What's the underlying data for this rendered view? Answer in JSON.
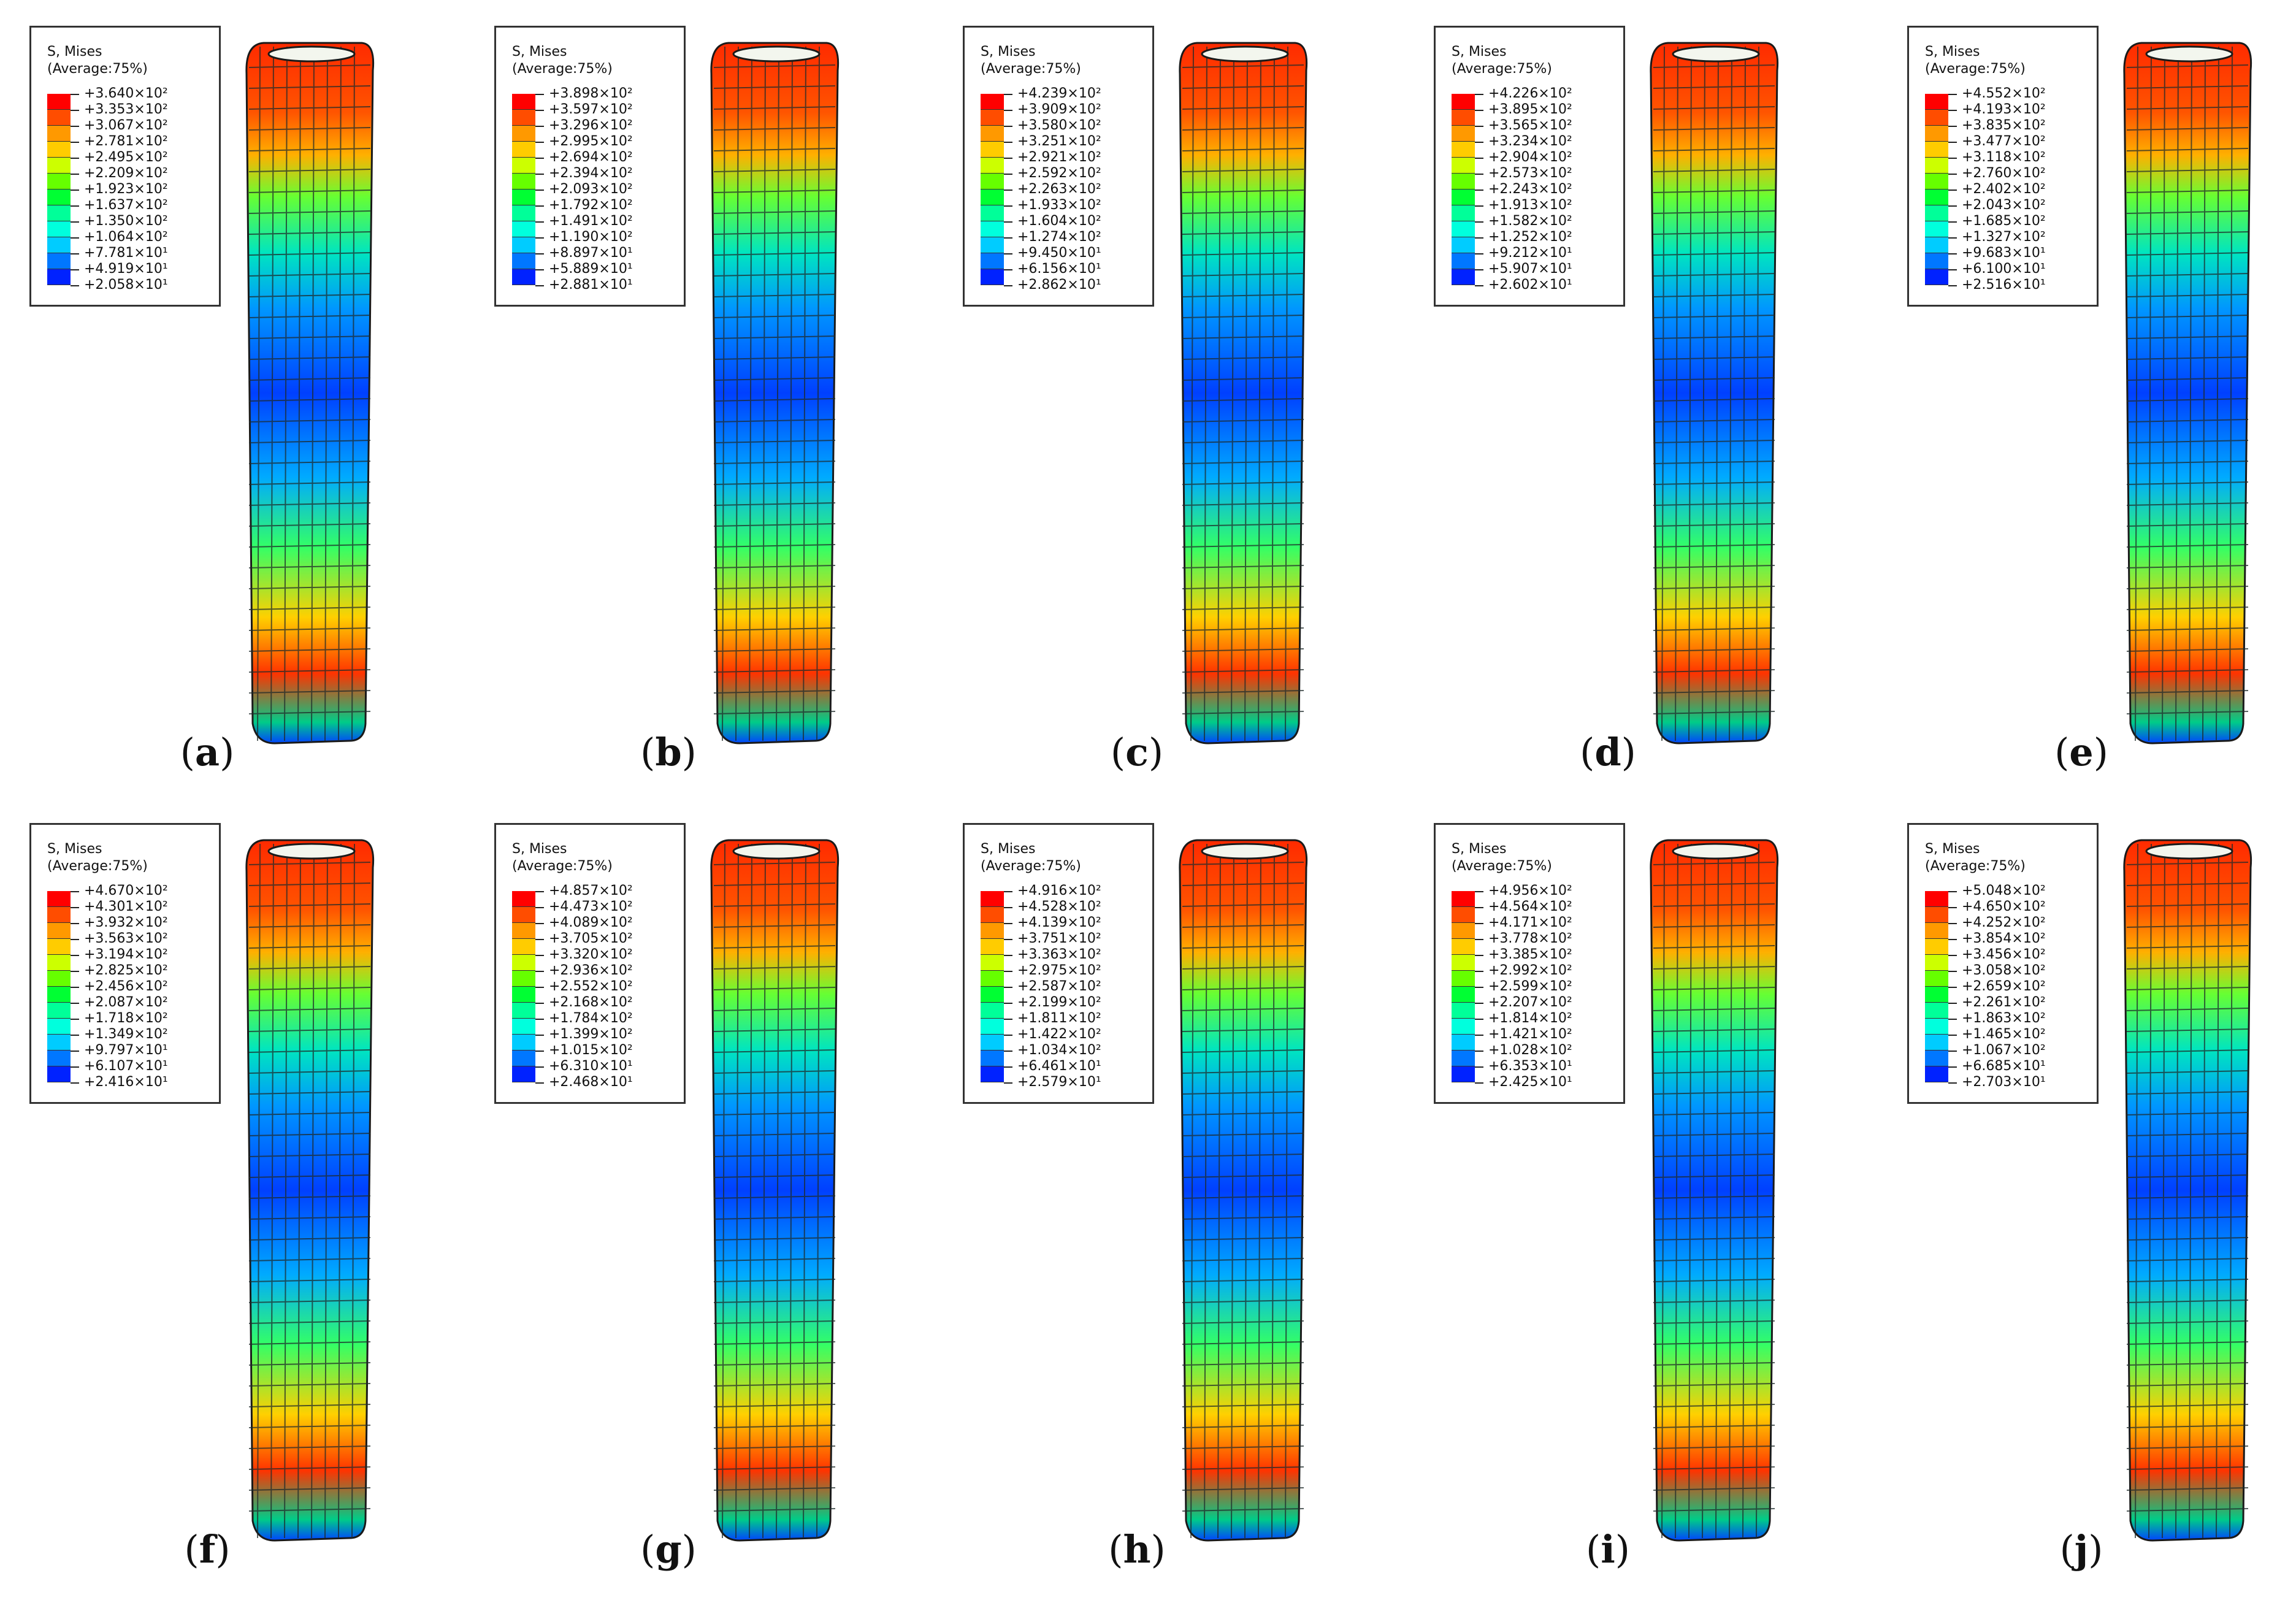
{
  "legend_title": "S, Mises",
  "legend_subtitle": "(Average:75%)",
  "legend_colors": [
    "#ff0000",
    "#ff4d00",
    "#ff9900",
    "#ffcc00",
    "#ccff00",
    "#66ff00",
    "#00ff33",
    "#00ff99",
    "#00ffdd",
    "#00ccff",
    "#0077ff",
    "#0022ff"
  ],
  "panels": [
    {
      "label": "a",
      "open": "(",
      "close": ")",
      "values": [
        "+3.640×10²",
        "+3.353×10²",
        "+3.067×10²",
        "+2.781×10²",
        "+2.495×10²",
        "+2.209×10²",
        "+1.923×10²",
        "+1.637×10²",
        "+1.350×10²",
        "+1.064×10²",
        "+7.781×10¹",
        "+4.919×10¹",
        "+2.058×10¹"
      ]
    },
    {
      "label": "b",
      "open": "(",
      "close": ")",
      "values": [
        "+3.898×10²",
        "+3.597×10²",
        "+3.296×10²",
        "+2.995×10²",
        "+2.694×10²",
        "+2.394×10²",
        "+2.093×10²",
        "+1.792×10²",
        "+1.491×10²",
        "+1.190×10²",
        "+8.897×10¹",
        "+5.889×10¹",
        "+2.881×10¹"
      ]
    },
    {
      "label": "c",
      "open": "(",
      "close": ")",
      "values": [
        "+4.239×10²",
        "+3.909×10²",
        "+3.580×10²",
        "+3.251×10²",
        "+2.921×10²",
        "+2.592×10²",
        "+2.263×10²",
        "+1.933×10²",
        "+1.604×10²",
        "+1.274×10²",
        "+9.450×10¹",
        "+6.156×10¹",
        "+2.862×10¹"
      ]
    },
    {
      "label": "d",
      "open": "(",
      "close": ")",
      "values": [
        "+4.226×10²",
        "+3.895×10²",
        "+3.565×10²",
        "+3.234×10²",
        "+2.904×10²",
        "+2.573×10²",
        "+2.243×10²",
        "+1.913×10²",
        "+1.582×10²",
        "+1.252×10²",
        "+9.212×10¹",
        "+5.907×10¹",
        "+2.602×10¹"
      ]
    },
    {
      "label": "e",
      "open": "(",
      "close": ")",
      "values": [
        "+4.552×10²",
        "+4.193×10²",
        "+3.835×10²",
        "+3.477×10²",
        "+3.118×10²",
        "+2.760×10²",
        "+2.402×10²",
        "+2.043×10²",
        "+1.685×10²",
        "+1.327×10²",
        "+9.683×10¹",
        "+6.100×10¹",
        "+2.516×10¹"
      ]
    },
    {
      "label": "f",
      "open": "(",
      "close": ")",
      "values": [
        "+4.670×10²",
        "+4.301×10²",
        "+3.932×10²",
        "+3.563×10²",
        "+3.194×10²",
        "+2.825×10²",
        "+2.456×10²",
        "+2.087×10²",
        "+1.718×10²",
        "+1.349×10²",
        "+9.797×10¹",
        "+6.107×10¹",
        "+2.416×10¹"
      ]
    },
    {
      "label": "g",
      "open": "(",
      "close": ")",
      "values": [
        "+4.857×10²",
        "+4.473×10²",
        "+4.089×10²",
        "+3.705×10²",
        "+3.320×10²",
        "+2.936×10²",
        "+2.552×10²",
        "+2.168×10²",
        "+1.784×10²",
        "+1.399×10²",
        "+1.015×10²",
        "+6.310×10¹",
        "+2.468×10¹"
      ]
    },
    {
      "label": "h",
      "open": "(",
      "close": ")",
      "values": [
        "+4.916×10²",
        "+4.528×10²",
        "+4.139×10²",
        "+3.751×10²",
        "+3.363×10²",
        "+2.975×10²",
        "+2.587×10²",
        "+2.199×10²",
        "+1.811×10²",
        "+1.422×10²",
        "+1.034×10²",
        "+6.461×10¹",
        "+2.579×10¹"
      ]
    },
    {
      "label": "i",
      "open": "(",
      "close": ")",
      "values": [
        "+4.956×10²",
        "+4.564×10²",
        "+4.171×10²",
        "+3.778×10²",
        "+3.385×10²",
        "+2.992×10²",
        "+2.599×10²",
        "+2.207×10²",
        "+1.814×10²",
        "+1.421×10²",
        "+1.028×10²",
        "+6.353×10¹",
        "+2.425×10¹"
      ]
    },
    {
      "label": "j",
      "open": "(",
      "close": ")",
      "values": [
        "+5.048×10²",
        "+4.650×10²",
        "+4.252×10²",
        "+3.854×10²",
        "+3.456×10²",
        "+3.058×10²",
        "+2.659×10²",
        "+2.261×10²",
        "+1.863×10²",
        "+1.465×10²",
        "+1.067×10²",
        "+6.685×10¹",
        "+2.703×10¹"
      ]
    }
  ]
}
